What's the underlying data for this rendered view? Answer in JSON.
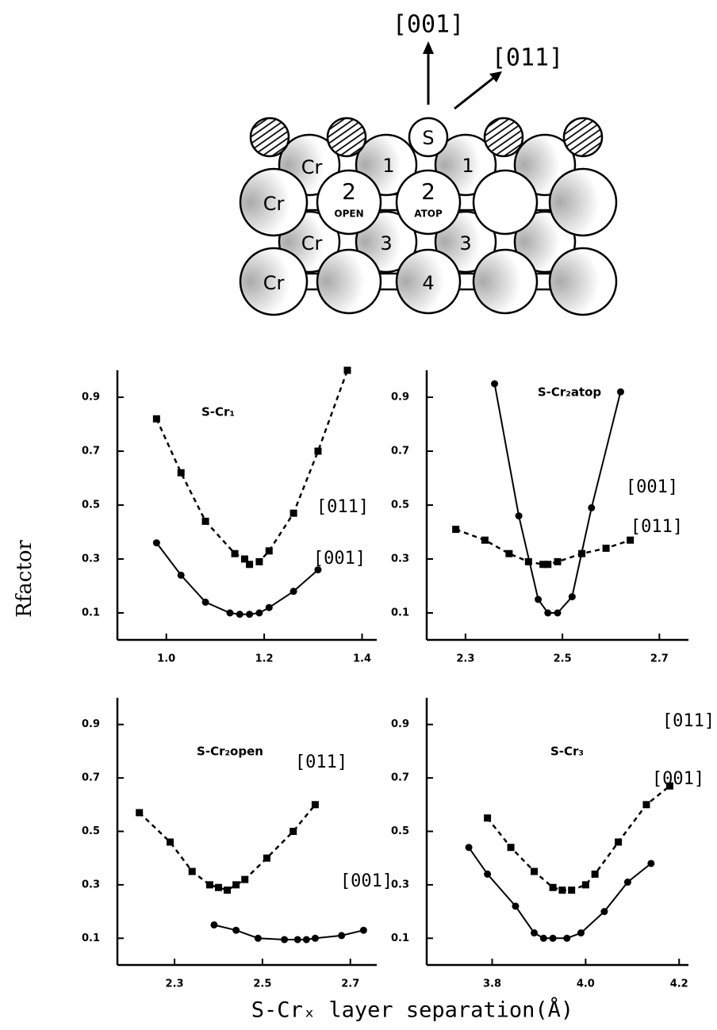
{
  "diagram": {
    "arrow_up": "[001]",
    "arrow_diag": "[011]",
    "s_atom": "S",
    "cr": "Cr",
    "open": "OPEN",
    "atop": "ATOP",
    "layer_1": "1",
    "layer_2": "2",
    "layer_3": "3",
    "layer_4": "4"
  },
  "y_label": "Rfactor",
  "x_label": "S-Crₓ  layer  separation(Å)",
  "chart_data": [
    {
      "type": "line",
      "title": "S-Cr₁",
      "xlim": [
        0.9,
        1.43
      ],
      "xticks": [
        {
          "value": 1,
          "label": "1.0"
        },
        1.2,
        1.4
      ],
      "ylim": [
        0,
        1.0
      ],
      "yticks": [
        0.1,
        0.3,
        0.5,
        0.7,
        0.9
      ],
      "series": [
        {
          "name": "[011]",
          "color": "#000000",
          "marker": "square",
          "line_style": "dashed",
          "x": [
            0.98,
            1.03,
            1.08,
            1.14,
            1.16,
            1.17,
            1.19,
            1.21,
            1.26,
            1.31,
            1.37
          ],
          "values": [
            0.82,
            0.62,
            0.44,
            0.32,
            0.3,
            0.28,
            0.29,
            0.33,
            0.47,
            0.7,
            1.0
          ]
        },
        {
          "name": "[001]",
          "color": "#000000",
          "marker": "circle",
          "line_style": "solid",
          "x": [
            0.98,
            1.03,
            1.08,
            1.13,
            1.15,
            1.17,
            1.19,
            1.21,
            1.26,
            1.31
          ],
          "values": [
            0.36,
            0.24,
            0.14,
            0.1,
            0.095,
            0.095,
            0.1,
            0.12,
            0.18,
            0.26
          ]
        }
      ]
    },
    {
      "type": "line",
      "title": "S-Cr₂atop",
      "xlim": [
        2.22,
        2.76
      ],
      "xticks": [
        2.3,
        2.5,
        2.7
      ],
      "ylim": [
        0,
        1.0
      ],
      "yticks": [
        0.1,
        0.3,
        0.5,
        0.7,
        0.9
      ],
      "series": [
        {
          "name": "[011]",
          "color": "#000000",
          "marker": "square",
          "line_style": "dashed",
          "x": [
            2.28,
            2.34,
            2.39,
            2.43,
            2.46,
            2.47,
            2.49,
            2.54,
            2.59,
            2.64
          ],
          "values": [
            0.41,
            0.37,
            0.32,
            0.29,
            0.28,
            0.28,
            0.29,
            0.32,
            0.34,
            0.37
          ]
        },
        {
          "name": "[001]",
          "color": "#000000",
          "marker": "circle",
          "line_style": "solid",
          "x": [
            2.36,
            2.41,
            2.45,
            2.47,
            2.49,
            2.52,
            2.56,
            2.62
          ],
          "values": [
            0.95,
            0.46,
            0.15,
            0.1,
            0.1,
            0.16,
            0.49,
            0.92
          ]
        }
      ]
    },
    {
      "type": "line",
      "title": "S-Cr₂open",
      "xlim": [
        2.17,
        2.76
      ],
      "xticks": [
        2.3,
        2.5,
        2.7
      ],
      "ylim": [
        0,
        1.0
      ],
      "yticks": [
        0.1,
        0.3,
        0.5,
        0.7,
        0.9
      ],
      "series": [
        {
          "name": "[011]",
          "color": "#000000",
          "marker": "square",
          "line_style": "dashed",
          "x": [
            2.22,
            2.29,
            2.34,
            2.38,
            2.4,
            2.42,
            2.44,
            2.46,
            2.51,
            2.57,
            2.62
          ],
          "values": [
            0.57,
            0.46,
            0.35,
            0.3,
            0.29,
            0.28,
            0.3,
            0.32,
            0.4,
            0.5,
            0.6
          ]
        },
        {
          "name": "[001]",
          "color": "#000000",
          "marker": "circle",
          "line_style": "solid",
          "x": [
            2.39,
            2.44,
            2.49,
            2.55,
            2.58,
            2.6,
            2.62,
            2.68,
            2.73
          ],
          "values": [
            0.15,
            0.13,
            0.1,
            0.095,
            0.095,
            0.095,
            0.1,
            0.11,
            0.13
          ]
        }
      ]
    },
    {
      "type": "line",
      "title": "S-Cr₃",
      "xlim": [
        3.66,
        4.22
      ],
      "xticks": [
        3.8,
        {
          "value": 4,
          "label": "4.0"
        },
        4.2
      ],
      "ylim": [
        0,
        1.0
      ],
      "yticks": [
        0.1,
        0.3,
        0.5,
        0.7,
        0.9
      ],
      "series": [
        {
          "name": "[011]",
          "color": "#000000",
          "marker": "square",
          "line_style": "dashed",
          "x": [
            3.79,
            3.84,
            3.89,
            3.93,
            3.95,
            3.97,
            4.0,
            4.02,
            4.07,
            4.13,
            4.18
          ],
          "values": [
            0.55,
            0.44,
            0.35,
            0.29,
            0.28,
            0.28,
            0.3,
            0.34,
            0.46,
            0.6,
            0.67
          ]
        },
        {
          "name": "[001]",
          "color": "#000000",
          "marker": "circle",
          "line_style": "solid",
          "x": [
            3.75,
            3.79,
            3.85,
            3.89,
            3.91,
            3.93,
            3.96,
            3.99,
            4.04,
            4.09,
            4.14
          ],
          "values": [
            0.44,
            0.34,
            0.22,
            0.12,
            0.1,
            0.1,
            0.1,
            0.12,
            0.2,
            0.31,
            0.38
          ]
        }
      ]
    }
  ]
}
